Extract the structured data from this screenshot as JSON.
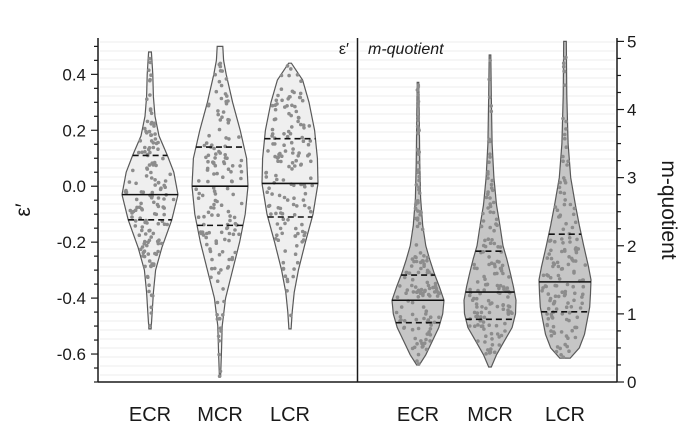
{
  "colors": {
    "violin_left_fill": "#efefef",
    "violin_right_fill": "#c6c6c6",
    "violin_stroke": "#595959",
    "dot": "#8c8c8c",
    "axis": "#1a1a1a",
    "band": "#ececec"
  },
  "chart_data": [
    {
      "type": "violin",
      "panel": "left",
      "tag": "ε′",
      "ylabel": "ε′",
      "ylim": [
        -0.7,
        0.53
      ],
      "yticks": [
        -0.6,
        -0.4,
        -0.2,
        0.0,
        0.2,
        0.4
      ],
      "ytick_labels": [
        "-0.6",
        "-0.4",
        "-0.2",
        "0.0",
        "0.2",
        "0.4"
      ],
      "categories": [
        "ECR",
        "MCR",
        "LCR"
      ],
      "series": [
        {
          "category": "ECR",
          "min": -0.51,
          "max": 0.48,
          "median": -0.03,
          "q1": -0.12,
          "q3": 0.11,
          "profile": [
            [
              -0.51,
              0.04
            ],
            [
              -0.45,
              0.08
            ],
            [
              -0.38,
              0.12
            ],
            [
              -0.3,
              0.2
            ],
            [
              -0.22,
              0.42
            ],
            [
              -0.12,
              0.78
            ],
            [
              -0.03,
              1.0
            ],
            [
              0.05,
              0.85
            ],
            [
              0.11,
              0.62
            ],
            [
              0.18,
              0.32
            ],
            [
              0.25,
              0.18
            ],
            [
              0.32,
              0.12
            ],
            [
              0.4,
              0.1
            ],
            [
              0.48,
              0.05
            ]
          ]
        },
        {
          "category": "MCR",
          "min": -0.68,
          "max": 0.5,
          "median": 0.0,
          "q1": -0.14,
          "q3": 0.14,
          "profile": [
            [
              -0.68,
              0.02
            ],
            [
              -0.6,
              0.05
            ],
            [
              -0.5,
              0.08
            ],
            [
              -0.4,
              0.2
            ],
            [
              -0.3,
              0.45
            ],
            [
              -0.2,
              0.7
            ],
            [
              -0.1,
              0.9
            ],
            [
              0.0,
              1.0
            ],
            [
              0.1,
              0.95
            ],
            [
              0.2,
              0.72
            ],
            [
              0.3,
              0.45
            ],
            [
              0.4,
              0.22
            ],
            [
              0.45,
              0.13
            ],
            [
              0.5,
              0.1
            ]
          ]
        },
        {
          "category": "LCR",
          "min": -0.51,
          "max": 0.44,
          "median": 0.01,
          "q1": -0.11,
          "q3": 0.17,
          "profile": [
            [
              -0.51,
              0.04
            ],
            [
              -0.45,
              0.08
            ],
            [
              -0.38,
              0.15
            ],
            [
              -0.3,
              0.3
            ],
            [
              -0.2,
              0.55
            ],
            [
              -0.1,
              0.82
            ],
            [
              0.01,
              1.0
            ],
            [
              0.1,
              0.98
            ],
            [
              0.2,
              0.88
            ],
            [
              0.3,
              0.68
            ],
            [
              0.38,
              0.45
            ],
            [
              0.44,
              0.05
            ]
          ]
        }
      ]
    },
    {
      "type": "violin",
      "panel": "right",
      "tag": "m-quotient",
      "ylabel": "m-quotient",
      "ylim": [
        0,
        5.05
      ],
      "yticks": [
        0,
        1,
        2,
        3,
        4,
        5
      ],
      "ytick_labels": [
        "0",
        "1",
        "2",
        "3",
        "4",
        "5"
      ],
      "categories": [
        "ECR",
        "MCR",
        "LCR"
      ],
      "series": [
        {
          "category": "ECR",
          "min": 0.25,
          "max": 4.4,
          "median": 1.2,
          "q1": 0.87,
          "q3": 1.57,
          "profile": [
            [
              0.25,
              0.05
            ],
            [
              0.4,
              0.3
            ],
            [
              0.6,
              0.55
            ],
            [
              0.8,
              0.8
            ],
            [
              1.0,
              0.95
            ],
            [
              1.2,
              1.0
            ],
            [
              1.4,
              0.82
            ],
            [
              1.6,
              0.62
            ],
            [
              1.8,
              0.45
            ],
            [
              2.0,
              0.3
            ],
            [
              2.3,
              0.18
            ],
            [
              2.7,
              0.1
            ],
            [
              3.2,
              0.07
            ],
            [
              3.8,
              0.05
            ],
            [
              4.4,
              0.03
            ]
          ]
        },
        {
          "category": "MCR",
          "min": 0.22,
          "max": 4.8,
          "median": 1.32,
          "q1": 0.92,
          "q3": 1.92,
          "profile": [
            [
              0.22,
              0.05
            ],
            [
              0.4,
              0.25
            ],
            [
              0.6,
              0.55
            ],
            [
              0.8,
              0.85
            ],
            [
              1.0,
              0.98
            ],
            [
              1.2,
              1.0
            ],
            [
              1.4,
              0.9
            ],
            [
              1.6,
              0.78
            ],
            [
              1.8,
              0.65
            ],
            [
              2.0,
              0.5
            ],
            [
              2.3,
              0.38
            ],
            [
              2.6,
              0.25
            ],
            [
              3.0,
              0.15
            ],
            [
              3.5,
              0.08
            ],
            [
              4.2,
              0.05
            ],
            [
              4.8,
              0.03
            ]
          ]
        },
        {
          "category": "LCR",
          "min": 0.35,
          "max": 5.0,
          "median": 1.47,
          "q1": 1.03,
          "q3": 2.17,
          "profile": [
            [
              0.35,
              0.2
            ],
            [
              0.5,
              0.55
            ],
            [
              0.7,
              0.75
            ],
            [
              0.9,
              0.85
            ],
            [
              1.1,
              0.95
            ],
            [
              1.3,
              0.98
            ],
            [
              1.5,
              1.0
            ],
            [
              1.7,
              0.9
            ],
            [
              2.0,
              0.72
            ],
            [
              2.3,
              0.55
            ],
            [
              2.6,
              0.4
            ],
            [
              3.0,
              0.22
            ],
            [
              3.5,
              0.12
            ],
            [
              4.2,
              0.07
            ],
            [
              5.0,
              0.05
            ]
          ]
        }
      ]
    }
  ]
}
